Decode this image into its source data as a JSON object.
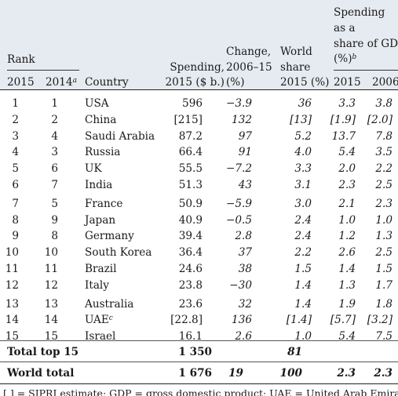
{
  "header": {
    "rank": "Rank",
    "y2015": "2015",
    "y2014": "2014",
    "y2014_sup": "a",
    "country": "Country",
    "spend1": "Spending,",
    "spend2": "2015 ($ b.)",
    "chg1": "Change,",
    "chg2": "2006–15",
    "chg3": "(%)",
    "ws1": "World",
    "ws2": "share",
    "ws3": "2015 (%)",
    "gdp1": "Spending",
    "gdp2": "as a",
    "gdp3": "share of GDP",
    "gdp4": "(%)",
    "gdp4_sup": "b",
    "g2015": "2015",
    "g2006": "2006"
  },
  "rows": [
    {
      "r15": "1",
      "r14": "1",
      "country": "USA",
      "sup": "",
      "spend": "596",
      "chg": "−3.9",
      "ws": "36",
      "g15": "3.3",
      "g06": "3.8"
    },
    {
      "r15": "2",
      "r14": "2",
      "country": "China",
      "sup": "",
      "spend": "[215]",
      "chg": "132",
      "ws": "[13]",
      "g15": "[1.9]",
      "g06": "[2.0]"
    },
    {
      "r15": "3",
      "r14": "4",
      "country": "Saudi Arabia",
      "sup": "",
      "spend": "87.2",
      "chg": "97",
      "ws": "5.2",
      "g15": "13.7",
      "g06": "7.8"
    },
    {
      "r15": "4",
      "r14": "3",
      "country": "Russia",
      "sup": "",
      "spend": "66.4",
      "chg": "91",
      "ws": "4.0",
      "g15": "5.4",
      "g06": "3.5"
    },
    {
      "r15": "5",
      "r14": "6",
      "country": "UK",
      "sup": "",
      "spend": "55.5",
      "chg": "−7.2",
      "ws": "3.3",
      "g15": "2.0",
      "g06": "2.2"
    },
    {
      "r15": "6",
      "r14": "7",
      "country": "India",
      "sup": "",
      "spend": "51.3",
      "chg": "43",
      "ws": "3.1",
      "g15": "2.3",
      "g06": "2.5"
    },
    {
      "r15": "7",
      "r14": "5",
      "country": "France",
      "sup": "",
      "spend": "50.9",
      "chg": "−5.9",
      "ws": "3.0",
      "g15": "2.1",
      "g06": "2.3"
    },
    {
      "r15": "8",
      "r14": "9",
      "country": "Japan",
      "sup": "",
      "spend": "40.9",
      "chg": "−0.5",
      "ws": "2.4",
      "g15": "1.0",
      "g06": "1.0"
    },
    {
      "r15": "9",
      "r14": "8",
      "country": "Germany",
      "sup": "",
      "spend": "39.4",
      "chg": "2.8",
      "ws": "2.4",
      "g15": "1.2",
      "g06": "1.3"
    },
    {
      "r15": "10",
      "r14": "10",
      "country": "South Korea",
      "sup": "",
      "spend": "36.4",
      "chg": "37",
      "ws": "2.2",
      "g15": "2.6",
      "g06": "2.5"
    },
    {
      "r15": "11",
      "r14": "11",
      "country": "Brazil",
      "sup": "",
      "spend": "24.6",
      "chg": "38",
      "ws": "1.5",
      "g15": "1.4",
      "g06": "1.5"
    },
    {
      "r15": "12",
      "r14": "12",
      "country": "Italy",
      "sup": "",
      "spend": "23.8",
      "chg": "−30",
      "ws": "1.4",
      "g15": "1.3",
      "g06": "1.7"
    },
    {
      "r15": "13",
      "r14": "13",
      "country": "Australia",
      "sup": "",
      "spend": "23.6",
      "chg": "32",
      "ws": "1.4",
      "g15": "1.9",
      "g06": "1.8"
    },
    {
      "r15": "14",
      "r14": "14",
      "country": "UAE",
      "sup": "c",
      "spend": "[22.8]",
      "chg": "136",
      "ws": "[1.4]",
      "g15": "[5.7]",
      "g06": "[3.2]"
    },
    {
      "r15": "15",
      "r14": "15",
      "country": "Israel",
      "sup": "",
      "spend": "16.1",
      "chg": "2.6",
      "ws": "1.0",
      "g15": "5.4",
      "g06": "7.5"
    }
  ],
  "totals": [
    {
      "label": "Total top 15",
      "spend": "1 350",
      "chg": "",
      "ws": "81",
      "g15": "",
      "g06": ""
    },
    {
      "label": "World total",
      "spend": "1 676",
      "chg": "19",
      "ws": "100",
      "g15": "2.3",
      "g06": "2.3"
    }
  ],
  "footnote": "[ ] = SIPRI estimate; GDP = gross domestic product; UAE = United Arab Emirates."
}
